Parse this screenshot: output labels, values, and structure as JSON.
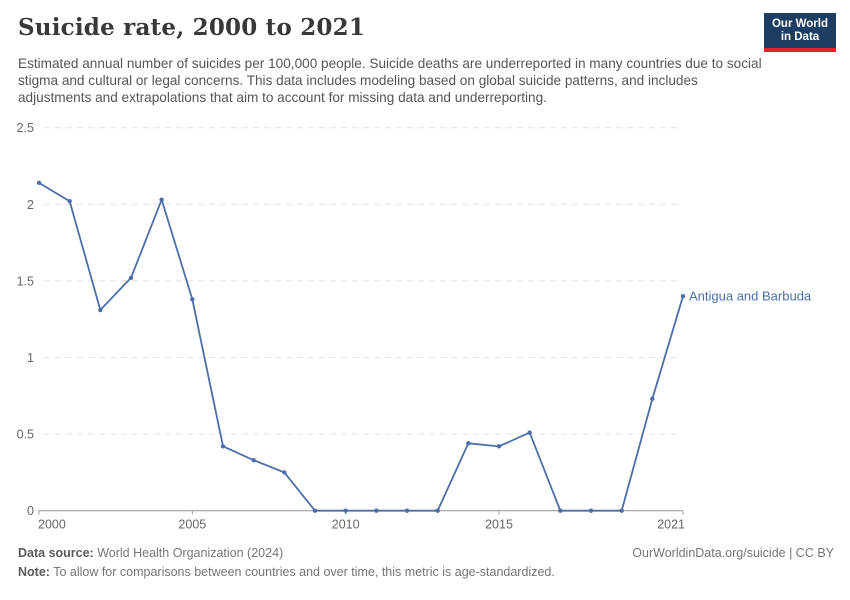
{
  "header": {
    "logo": {
      "line1": "Our World",
      "line2": "in Data"
    }
  },
  "chart_data": {
    "type": "line",
    "title": "Suicide rate, 2000 to 2021",
    "subtitle": "Estimated annual number of suicides per 100,000 people. Suicide deaths are underreported in many countries due to social stigma and cultural or legal concerns. This data includes modeling based on global suicide patterns, and includes adjustments and extrapolations that aim to account for missing data and underreporting.",
    "x": [
      2000,
      2001,
      2002,
      2003,
      2004,
      2005,
      2006,
      2007,
      2008,
      2009,
      2010,
      2011,
      2012,
      2013,
      2014,
      2015,
      2016,
      2017,
      2018,
      2019,
      2020,
      2021
    ],
    "series": [
      {
        "name": "Antigua and Barbuda",
        "values": [
          2.14,
          2.02,
          1.31,
          1.52,
          2.03,
          1.38,
          0.42,
          0.33,
          0.25,
          0,
          0,
          0,
          0,
          0,
          0.44,
          0.42,
          0.51,
          0,
          0,
          0,
          0.73,
          1.4
        ]
      }
    ],
    "xticks": [
      2000,
      2005,
      2010,
      2015,
      2021
    ],
    "yticks": [
      0,
      0.5,
      1,
      1.5,
      2,
      2.5
    ],
    "xlim": [
      2000,
      2021
    ],
    "ylim": [
      0,
      2.5
    ],
    "grid": "dashed-horizontal",
    "legend_position": "end-of-line",
    "line_color": "#4c6ea9",
    "axis_text_color": "#666666",
    "gridline_color": "#e2e2e2",
    "axis_line_color": "#a0a0a0"
  },
  "footer": {
    "datasource_label": "Data source:",
    "datasource_value": " World Health Organization (2024)",
    "note_label": "Note:",
    "note_value": " To allow for comparisons between countries and over time, this metric is age-standardized.",
    "right_text": "OurWorldinData.org/suicide | CC BY"
  },
  "colors": {
    "accent": "#4c6ea9",
    "logo_bg": "#1d3d63",
    "logo_stripe": "#e0262c",
    "title": "#383838",
    "subtitle": "#555555"
  }
}
